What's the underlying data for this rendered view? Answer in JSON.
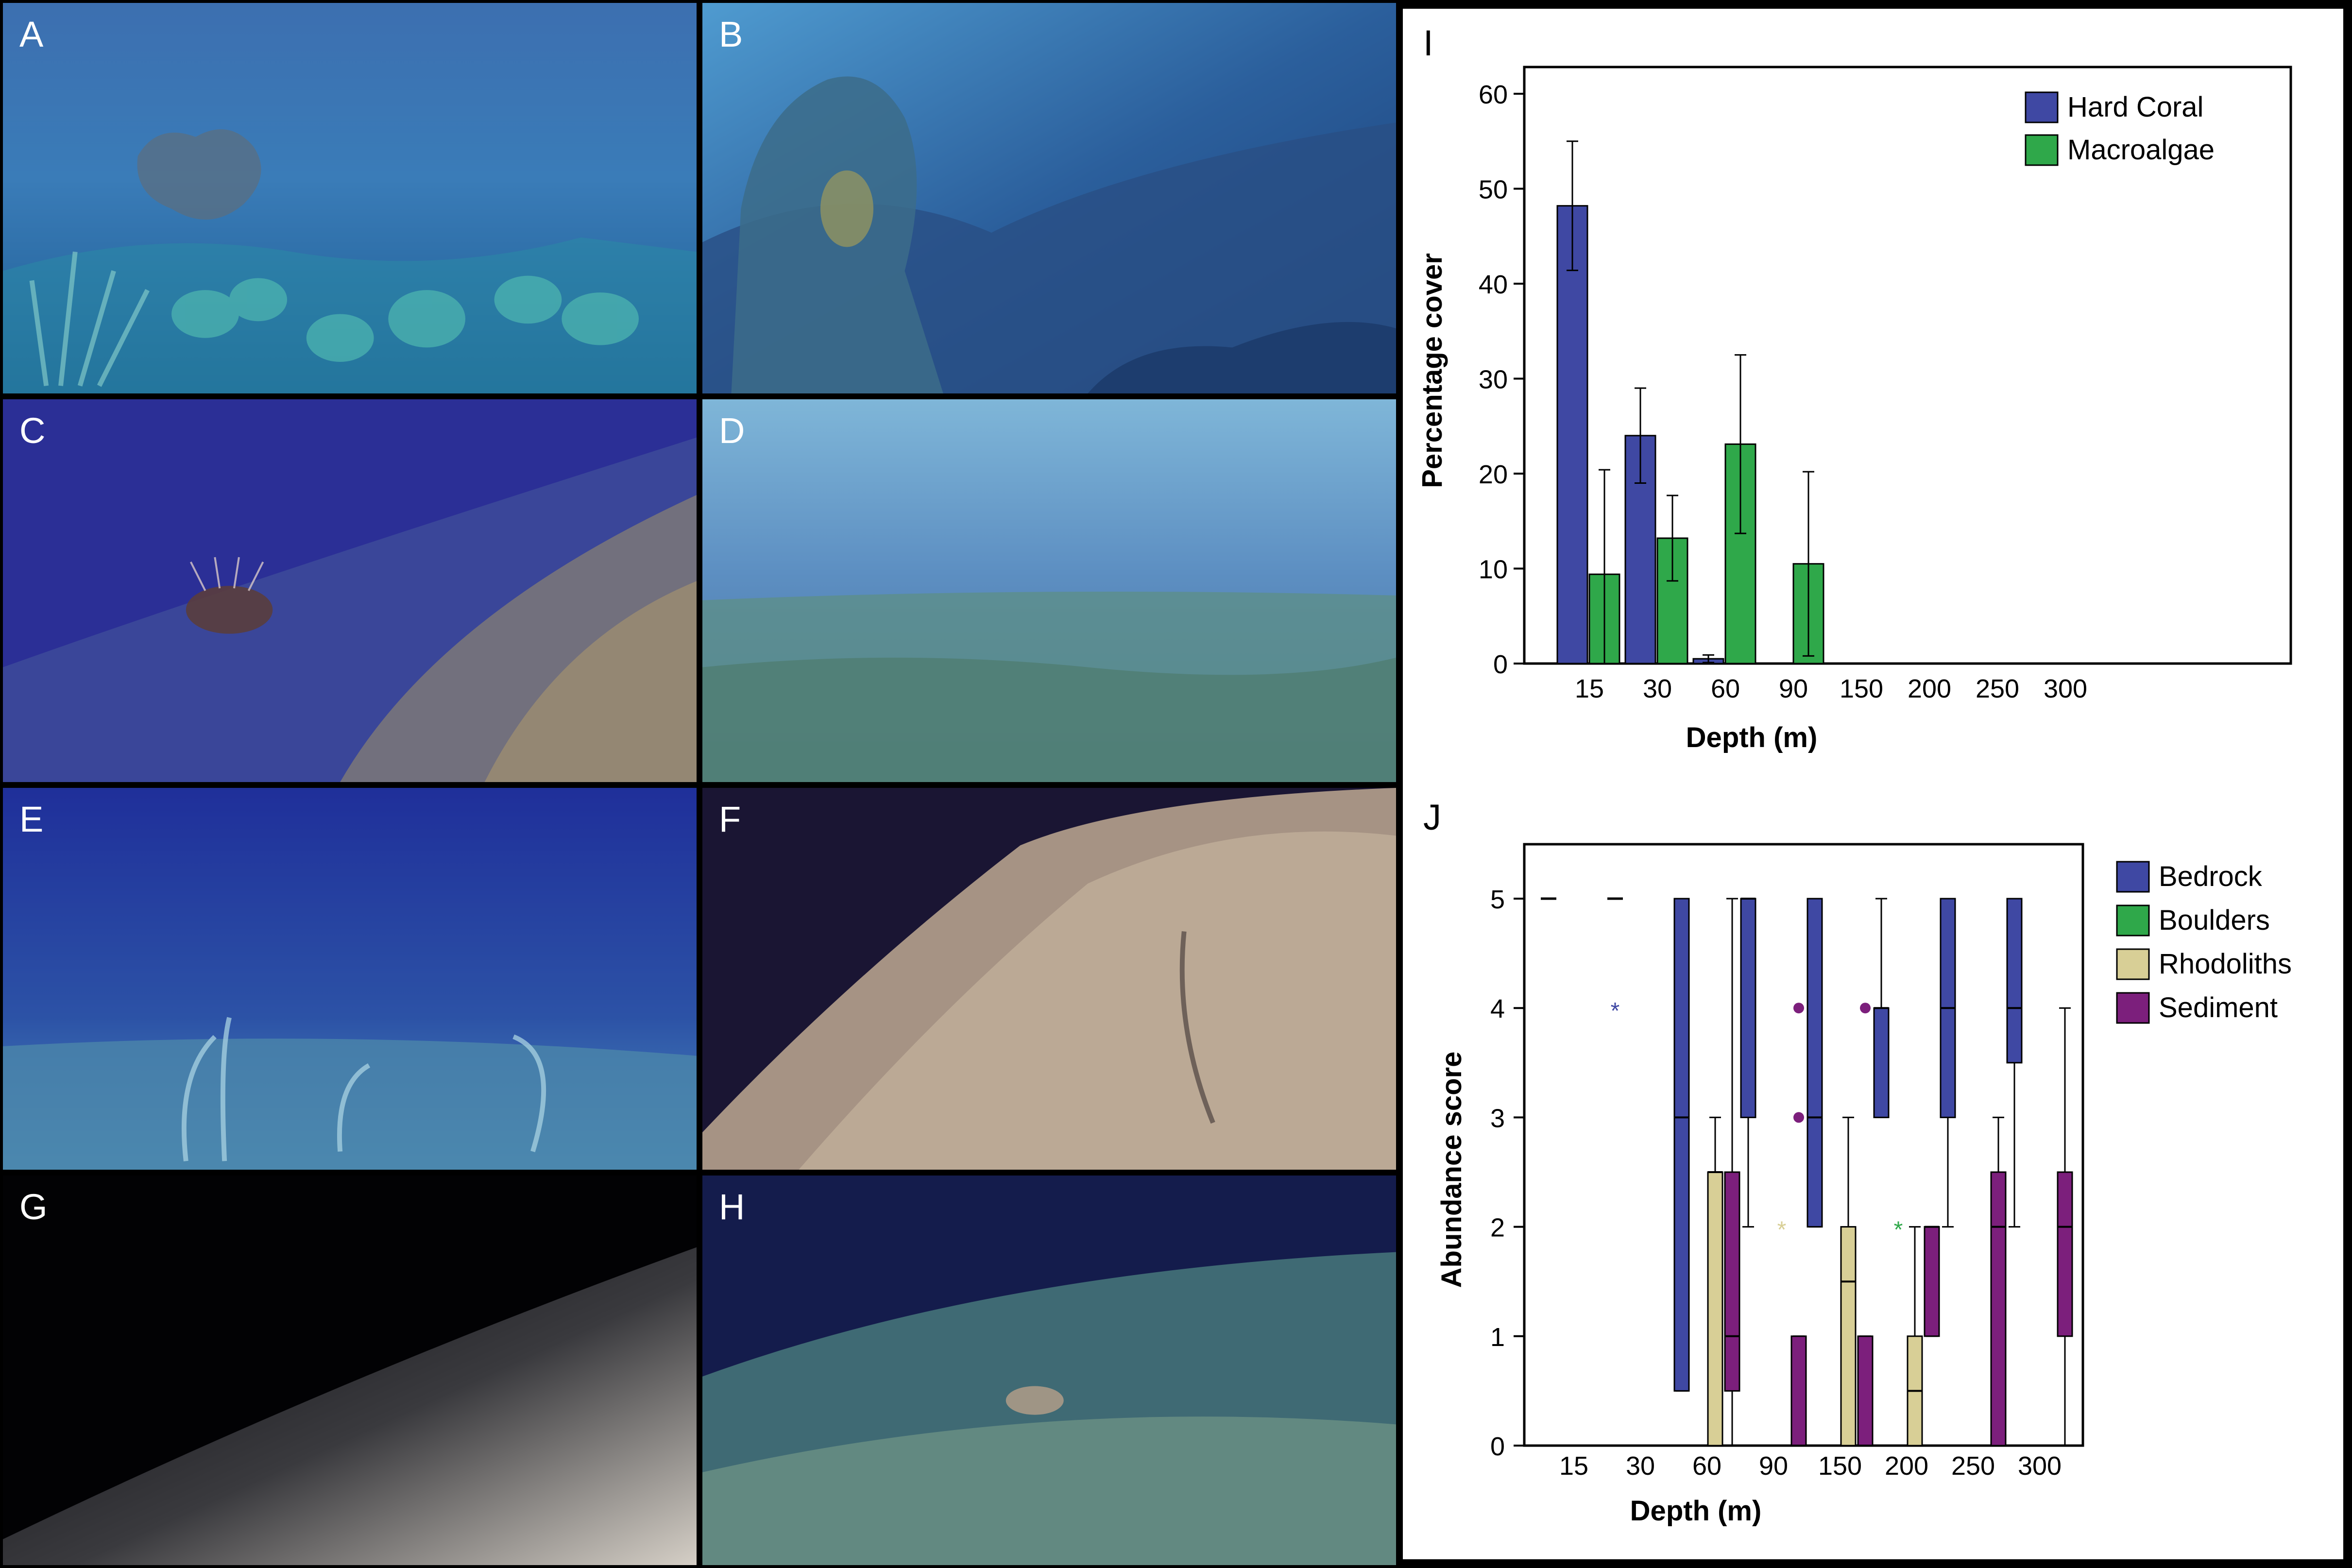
{
  "panels": [
    {
      "id": "A",
      "label": "A"
    },
    {
      "id": "B",
      "label": "B"
    },
    {
      "id": "C",
      "label": "C"
    },
    {
      "id": "D",
      "label": "D"
    },
    {
      "id": "E",
      "label": "E"
    },
    {
      "id": "F",
      "label": "F"
    },
    {
      "id": "G",
      "label": "G"
    },
    {
      "id": "H",
      "label": "H"
    }
  ],
  "chart_data": [
    {
      "panel_label": "I",
      "type": "bar",
      "xlabel": "Depth (m)",
      "ylabel": "Percentage cover",
      "ylim": [
        0,
        60
      ],
      "yticks": [
        0,
        10,
        20,
        30,
        40,
        50,
        60
      ],
      "categories": [
        "15",
        "30",
        "60",
        "90",
        "150",
        "200",
        "250",
        "300"
      ],
      "legend_position": "top-right",
      "series": [
        {
          "name": "Hard Coral",
          "color": "#3f48a3",
          "values": [
            48.2,
            24.0,
            0.5,
            0,
            0,
            0,
            0,
            0
          ],
          "error": [
            6.8,
            5.0,
            0.4,
            0,
            0,
            0,
            0,
            0
          ]
        },
        {
          "name": "Macroalgae",
          "color": "#2fa84a",
          "values": [
            9.4,
            13.2,
            23.1,
            10.5,
            0,
            0,
            0,
            0
          ],
          "error": [
            11.0,
            4.5,
            9.4,
            9.7,
            0,
            0,
            0,
            0
          ]
        }
      ]
    },
    {
      "panel_label": "J",
      "type": "box",
      "xlabel": "Depth (m)",
      "ylabel": "Abundance score",
      "ylim": [
        0,
        5
      ],
      "yticks": [
        0,
        1,
        2,
        3,
        4,
        5
      ],
      "categories": [
        "15",
        "30",
        "60",
        "90",
        "150",
        "200",
        "250",
        "300"
      ],
      "legend_position": "right",
      "series": [
        {
          "name": "Bedrock",
          "color": "#3f48a3",
          "boxes": [
            {
              "category": "15",
              "min": 5,
              "q1": 5,
              "median": 5,
              "q3": 5,
              "max": 5
            },
            {
              "category": "30",
              "min": 5,
              "q1": 5,
              "median": 5,
              "q3": 5,
              "max": 5,
              "outliers_star": [
                4
              ]
            },
            {
              "category": "60",
              "min": 0.5,
              "q1": 0.5,
              "median": 3,
              "q3": 5,
              "max": 5
            },
            {
              "category": "90",
              "min": 2,
              "q1": 3,
              "median": 5,
              "q3": 5,
              "max": 5
            },
            {
              "category": "150",
              "min": 2,
              "q1": 2,
              "median": 3,
              "q3": 5,
              "max": 5
            },
            {
              "category": "200",
              "min": 3,
              "q1": 3,
              "median": 4,
              "q3": 4,
              "max": 5
            },
            {
              "category": "250",
              "min": 2,
              "q1": 3,
              "median": 4,
              "q3": 5,
              "max": 5
            },
            {
              "category": "300",
              "min": 2,
              "q1": 3.5,
              "median": 4,
              "q3": 5,
              "max": 5
            }
          ]
        },
        {
          "name": "Boulders",
          "color": "#2fa84a",
          "boxes": [
            {
              "category": "200",
              "outliers_star": [
                2
              ]
            }
          ]
        },
        {
          "name": "Rhodoliths",
          "color": "#d8cf96",
          "boxes": [
            {
              "category": "60",
              "min": 0,
              "q1": 0,
              "median": 2.5,
              "q3": 2.5,
              "max": 3
            },
            {
              "category": "90",
              "outliers_star": [
                2
              ]
            },
            {
              "category": "150",
              "min": 0,
              "q1": 0,
              "median": 1.5,
              "q3": 2,
              "max": 3
            },
            {
              "category": "200",
              "min": 0,
              "q1": 0,
              "median": 0.5,
              "q3": 1,
              "max": 2
            }
          ]
        },
        {
          "name": "Sediment",
          "color": "#7c1f7c",
          "boxes": [
            {
              "category": "60",
              "min": 0,
              "q1": 0.5,
              "median": 1,
              "q3": 2.5,
              "max": 5
            },
            {
              "category": "90",
              "min": 0,
              "q1": 0,
              "median": 0,
              "q3": 1,
              "max": 1,
              "outliers_dot": [
                3,
                4
              ]
            },
            {
              "category": "150",
              "min": 0,
              "q1": 0,
              "median": 0,
              "q3": 1,
              "max": 1,
              "outliers_dot": [
                4
              ]
            },
            {
              "category": "200",
              "min": 1,
              "q1": 1,
              "median": 2,
              "q3": 2,
              "max": 2
            },
            {
              "category": "250",
              "min": 0,
              "q1": 0,
              "median": 2,
              "q3": 2.5,
              "max": 3
            },
            {
              "category": "300",
              "min": 0,
              "q1": 1,
              "median": 2,
              "q3": 2.5,
              "max": 4
            }
          ]
        }
      ]
    }
  ]
}
